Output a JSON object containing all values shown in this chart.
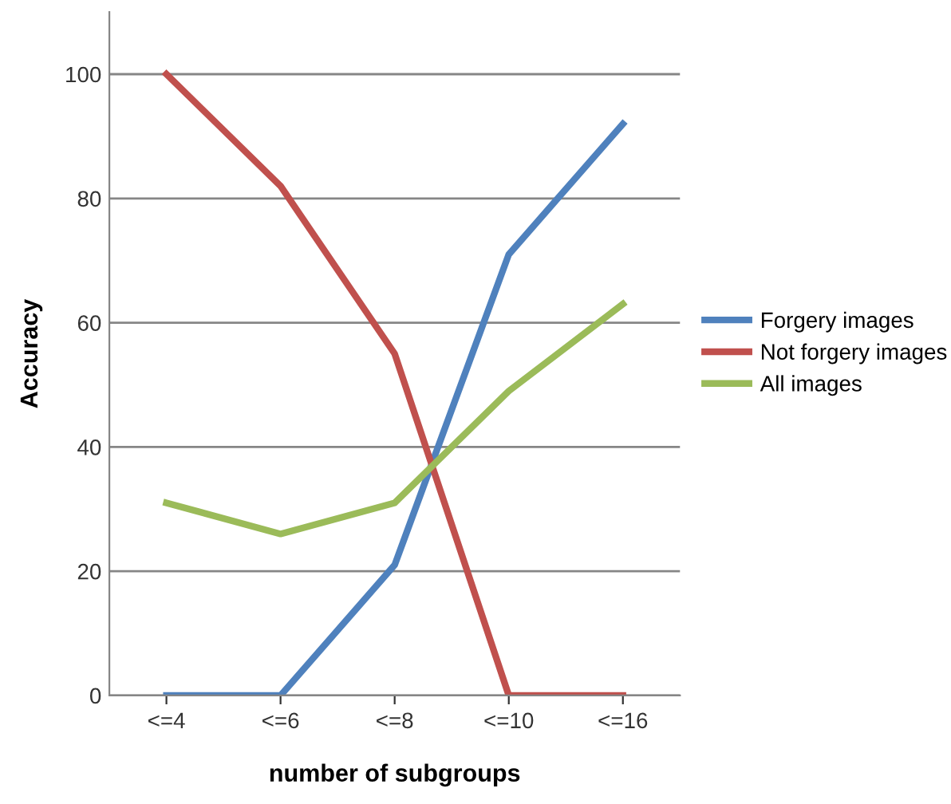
{
  "chart_data": {
    "type": "line",
    "xlabel": "number of subgroups",
    "ylabel": "Accuracy",
    "categories": [
      "<=4",
      "<=6",
      "<=8",
      "<=10",
      "<=16"
    ],
    "series": [
      {
        "name": "Forgery images",
        "color": "#4f81bd",
        "values": [
          0,
          0,
          21,
          71,
          92
        ]
      },
      {
        "name": "Not forgery images",
        "color": "#c0504d",
        "values": [
          100,
          82,
          55,
          0,
          0
        ]
      },
      {
        "name": "All images",
        "color": "#9bbb59",
        "values": [
          31,
          26,
          31,
          49,
          63
        ]
      }
    ],
    "ylim": [
      0,
      110
    ],
    "yticks": [
      0,
      20,
      40,
      60,
      80,
      100
    ],
    "grid": "y",
    "legend": "right",
    "marker": "none",
    "line_style": "solid"
  }
}
